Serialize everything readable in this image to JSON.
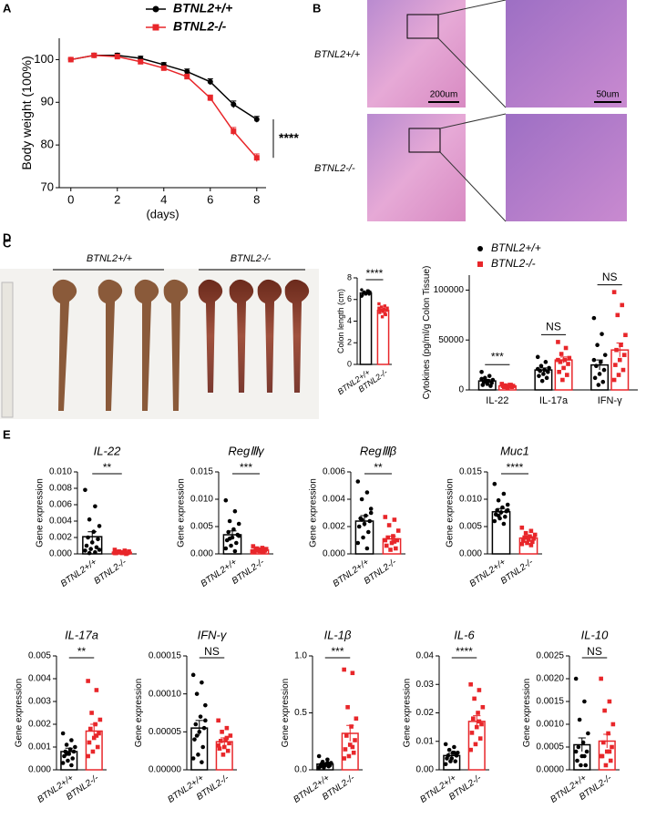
{
  "panel_B": {
    "label": "B",
    "row_labels": [
      "BTNL2+/+",
      "BTNL2-/-"
    ],
    "scale_labels": [
      "200um",
      "50um"
    ]
  },
  "panel_C_photo": {
    "label": "C",
    "group_labels": [
      "BTNL2+/+",
      "BTNL2-/-"
    ]
  },
  "chart_data": [
    {
      "type": "line",
      "panel": "A",
      "x": [
        0,
        1,
        2,
        3,
        4,
        5,
        6,
        7,
        8
      ],
      "xlim": [
        -0.5,
        8.4
      ],
      "xticks": [
        0,
        2,
        4,
        6,
        8
      ],
      "ylim": [
        70,
        105
      ],
      "yticks": [
        70,
        80,
        90,
        100
      ],
      "xlabel": "(days)",
      "ylabel": "Body weight (100%)",
      "annotation": "****",
      "series": [
        {
          "name": "BTNL2+/+",
          "color": "#000000",
          "values": [
            100,
            101,
            101,
            100.3,
            98.8,
            97.2,
            94.8,
            89.5,
            86
          ],
          "errors": [
            0.3,
            0.4,
            0.5,
            0.5,
            0.5,
            0.6,
            0.7,
            0.8,
            0.7
          ]
        },
        {
          "name": "BTNL2-/-",
          "color": "#e8262a",
          "values": [
            100,
            101,
            100.7,
            99.5,
            98,
            96,
            91,
            83.2,
            77
          ],
          "errors": [
            0.3,
            0.4,
            0.5,
            0.5,
            0.5,
            0.6,
            0.7,
            0.9,
            0.9
          ]
        }
      ]
    },
    {
      "type": "dotbar",
      "categories": [
        "BTNL2+/+",
        "BTNL2-/-"
      ],
      "colors": [
        "#000000",
        "#e8262a"
      ],
      "ylabel": "Colon length (cm)",
      "ylim": [
        0,
        8
      ],
      "yticks": [
        0,
        2,
        4,
        6,
        8
      ],
      "sig": "****",
      "values": [
        6.6,
        5.0
      ],
      "errors": [
        0.06,
        0.1
      ],
      "points": [
        [
          6.9,
          6.8,
          6.7,
          6.7,
          6.6,
          6.6,
          6.5,
          6.5,
          6.4,
          6.8,
          6.6,
          6.3
        ],
        [
          5.6,
          5.4,
          5.3,
          5.2,
          5.1,
          5.0,
          5.0,
          4.9,
          4.8,
          4.6,
          4.4,
          5.2,
          4.7
        ]
      ]
    },
    {
      "type": "grouped_bar",
      "panel": "D",
      "categories": [
        "IL-22",
        "IL-17a",
        "IFN-γ"
      ],
      "ylabel": "Cytokines (pg/ml/g Colon Tissue)",
      "ylim": [
        0,
        115000
      ],
      "yticks": [
        0,
        50000,
        100000
      ],
      "sig": [
        "***",
        "NS",
        "NS"
      ],
      "series": [
        {
          "name": "BTNL2+/+",
          "color": "#000000",
          "values": [
            9000,
            20000,
            25000
          ],
          "errors": [
            1300,
            2000,
            5000
          ],
          "points": [
            [
              18000,
              14000,
              12000,
              10000,
              9000,
              8000,
              7000,
              6000,
              5000,
              4000,
              9000,
              11000
            ],
            [
              33000,
              28000,
              24000,
              22000,
              20000,
              19000,
              18000,
              16000,
              14000,
              12000,
              9000,
              21000
            ],
            [
              72000,
              56000,
              45000,
              35000,
              28000,
              24000,
              20000,
              16000,
              12000,
              8000,
              5000,
              30000
            ]
          ]
        },
        {
          "name": "BTNL2-/-",
          "color": "#e8262a",
          "values": [
            4000,
            30000,
            40000
          ],
          "errors": [
            500,
            3000,
            7000
          ],
          "points": [
            [
              6000,
              5000,
              4500,
              4000,
              3500,
              3000,
              3000,
              2500,
              4000,
              5000
            ],
            [
              48000,
              42000,
              36000,
              32000,
              30000,
              28000,
              26000,
              22000,
              18000,
              15000,
              10000,
              30000
            ],
            [
              98000,
              85000,
              75000,
              55000,
              45000,
              40000,
              35000,
              30000,
              25000,
              20000,
              15000,
              10000
            ]
          ]
        }
      ]
    },
    {
      "type": "dotbar",
      "panel": "E",
      "title": "IL-22",
      "categories": [
        "BTNL2+/+",
        "BTNL2-/-"
      ],
      "colors": [
        "#000000",
        "#e8262a"
      ],
      "ylabel": "Gene expression",
      "ylim": [
        0,
        0.01
      ],
      "yticks": [
        {
          "value": 0,
          "label": "0.000"
        },
        {
          "value": 0.002,
          "label": "0.002"
        },
        {
          "value": 0.004,
          "label": "0.004"
        },
        {
          "value": 0.006,
          "label": "0.006"
        },
        {
          "value": 0.008,
          "label": "0.008"
        },
        {
          "value": 0.01,
          "label": "0.010"
        }
      ],
      "sig": "**",
      "values": [
        0.0021,
        0.0002
      ],
      "errors": [
        0.0006,
        7e-05
      ],
      "points": [
        [
          0.0078,
          0.0058,
          0.0042,
          0.0034,
          0.0027,
          0.002,
          0.0018,
          0.0014,
          0.001,
          0.0008,
          0.0006,
          0.0004,
          0.0002,
          0.0001,
          0.0005
        ],
        [
          0.0005,
          0.0004,
          0.0003,
          0.0003,
          0.0002,
          0.0002,
          0.0001,
          0.0001,
          0.0001,
          0,
          0.0002,
          0.0001
        ]
      ]
    },
    {
      "type": "dotbar",
      "title": "RegⅢγ",
      "categories": [
        "BTNL2+/+",
        "BTNL2-/-"
      ],
      "colors": [
        "#000000",
        "#e8262a"
      ],
      "ylabel": "Gene expression",
      "ylim": [
        0,
        0.015
      ],
      "yticks": [
        {
          "value": 0,
          "label": "0.000"
        },
        {
          "value": 0.005,
          "label": "0.005"
        },
        {
          "value": 0.01,
          "label": "0.010"
        },
        {
          "value": 0.015,
          "label": "0.015"
        }
      ],
      "sig": "***",
      "values": [
        0.0035,
        0.0007
      ],
      "errors": [
        0.0007,
        0.0002
      ],
      "points": [
        [
          0.0098,
          0.0078,
          0.006,
          0.0055,
          0.0045,
          0.004,
          0.0035,
          0.003,
          0.0025,
          0.002,
          0.0015,
          0.001,
          0.0005,
          0.0028,
          0.0033
        ],
        [
          0.0014,
          0.0011,
          0.001,
          0.0009,
          0.0008,
          0.0007,
          0.0006,
          0.0005,
          0.0004,
          0.0003,
          0.0006,
          0.0005,
          0.0004
        ]
      ]
    },
    {
      "type": "dotbar",
      "title": "RegⅢβ",
      "categories": [
        "BTNL2+/+",
        "BTNL2-/-"
      ],
      "colors": [
        "#000000",
        "#e8262a"
      ],
      "ylabel": "Gene expression",
      "ylim": [
        0,
        0.006
      ],
      "yticks": [
        {
          "value": 0,
          "label": "0.000"
        },
        {
          "value": 0.002,
          "label": "0.002"
        },
        {
          "value": 0.004,
          "label": "0.004"
        },
        {
          "value": 0.006,
          "label": "0.006"
        }
      ],
      "sig": "**",
      "values": [
        0.0024,
        0.0011
      ],
      "errors": [
        0.0004,
        0.0002
      ],
      "points": [
        [
          0.0053,
          0.0045,
          0.004,
          0.0033,
          0.0028,
          0.0026,
          0.0024,
          0.0022,
          0.002,
          0.0016,
          0.0012,
          0.0008,
          0.0004,
          0.0025,
          0.003
        ],
        [
          0.0027,
          0.0025,
          0.0021,
          0.0017,
          0.0013,
          0.0012,
          0.001,
          0.0008,
          0.0006,
          0.0004,
          0.0003,
          0.001,
          0.0009
        ]
      ]
    },
    {
      "type": "dotbar",
      "title": "Muc1",
      "categories": [
        "BTNL2+/+",
        "BTNL2-/-"
      ],
      "colors": [
        "#000000",
        "#e8262a"
      ],
      "ylabel": "Gene expression",
      "ylim": [
        0,
        0.015
      ],
      "yticks": [
        {
          "value": 0,
          "label": "0.000"
        },
        {
          "value": 0.005,
          "label": "0.005"
        },
        {
          "value": 0.01,
          "label": "0.010"
        },
        {
          "value": 0.015,
          "label": "0.015"
        }
      ],
      "sig": "****",
      "values": [
        0.0077,
        0.0029
      ],
      "errors": [
        0.0006,
        0.0003
      ],
      "points": [
        [
          0.0128,
          0.011,
          0.0098,
          0.009,
          0.0085,
          0.008,
          0.0078,
          0.0076,
          0.0072,
          0.0068,
          0.0065,
          0.006,
          0.0055,
          0.007,
          0.008
        ],
        [
          0.0048,
          0.0042,
          0.0038,
          0.0035,
          0.0032,
          0.003,
          0.0028,
          0.0026,
          0.0024,
          0.0022,
          0.002,
          0.0018,
          0.0016,
          0.003
        ]
      ]
    },
    {
      "type": "dotbar",
      "title": "IL-17a",
      "categories": [
        "BTNL2+/+",
        "BTNL2-/-"
      ],
      "colors": [
        "#000000",
        "#e8262a"
      ],
      "ylabel": "Gene expression",
      "ylim": [
        0,
        0.005
      ],
      "yticks": [
        {
          "value": 0,
          "label": "0.000"
        },
        {
          "value": 0.001,
          "label": "0.001"
        },
        {
          "value": 0.002,
          "label": "0.002"
        },
        {
          "value": 0.003,
          "label": "0.003"
        },
        {
          "value": 0.004,
          "label": "0.004"
        },
        {
          "value": 0.005,
          "label": "0.005"
        }
      ],
      "sig": "**",
      "values": [
        0.0008,
        0.0017
      ],
      "errors": [
        0.00015,
        0.0003
      ],
      "points": [
        [
          0.0016,
          0.0013,
          0.0011,
          0.001,
          0.0009,
          0.0008,
          0.0008,
          0.0007,
          0.0006,
          0.0005,
          0.0004,
          0.0003,
          0.0002,
          0.0007
        ],
        [
          0.0039,
          0.0035,
          0.0025,
          0.0022,
          0.002,
          0.0018,
          0.0016,
          0.0014,
          0.0012,
          0.001,
          0.0008,
          0.0006,
          0.0015
        ]
      ]
    },
    {
      "type": "dotbar",
      "title": "IFN-γ",
      "categories": [
        "BTNL2+/+",
        "BTNL2-/-"
      ],
      "colors": [
        "#000000",
        "#e8262a"
      ],
      "ylabel": "Gene expression",
      "ylim": [
        0,
        0.00015
      ],
      "yticks": [
        {
          "value": 0,
          "label": "0.00000"
        },
        {
          "value": 5e-05,
          "label": "0.00005"
        },
        {
          "value": 0.0001,
          "label": "0.00010"
        },
        {
          "value": 0.00015,
          "label": "0.00015"
        }
      ],
      "sig": "NS",
      "values": [
        5.5e-05,
        3.7e-05
      ],
      "errors": [
        1e-05,
        5e-06
      ],
      "points": [
        [
          0.000125,
          0.000115,
          0.0001,
          8.5e-05,
          7e-05,
          6e-05,
          5.5e-05,
          5e-05,
          4e-05,
          3e-05,
          2e-05,
          1.5e-05,
          1e-05,
          4.5e-05,
          6.5e-05
        ],
        [
          6.5e-05,
          5.5e-05,
          5e-05,
          4.5e-05,
          4e-05,
          3.8e-05,
          3.5e-05,
          3e-05,
          2.8e-05,
          2.5e-05,
          2e-05,
          3.2e-05,
          4.2e-05
        ]
      ]
    },
    {
      "type": "dotbar",
      "title": "IL-1β",
      "categories": [
        "BTNL2+/+",
        "BTNL2-/-"
      ],
      "colors": [
        "#000000",
        "#e8262a"
      ],
      "ylabel": "Gene expression",
      "ylim": [
        0,
        1
      ],
      "yticks": [
        {
          "value": 0,
          "label": "0.0"
        },
        {
          "value": 0.5,
          "label": "0.5"
        },
        {
          "value": 1,
          "label": "1.0"
        }
      ],
      "sig": "***",
      "values": [
        0.05,
        0.32
      ],
      "errors": [
        0.01,
        0.07
      ],
      "points": [
        [
          0.12,
          0.09,
          0.07,
          0.06,
          0.05,
          0.05,
          0.04,
          0.04,
          0.03,
          0.03,
          0.02,
          0.02,
          0.06,
          0.04
        ],
        [
          0.88,
          0.85,
          0.55,
          0.45,
          0.38,
          0.3,
          0.26,
          0.22,
          0.18,
          0.15,
          0.12,
          0.1,
          0.2
        ]
      ]
    },
    {
      "type": "dotbar",
      "title": "IL-6",
      "categories": [
        "BTNL2+/+",
        "BTNL2-/-"
      ],
      "colors": [
        "#000000",
        "#e8262a"
      ],
      "ylabel": "Gene expression",
      "ylim": [
        0,
        0.04
      ],
      "yticks": [
        {
          "value": 0,
          "label": "0.00"
        },
        {
          "value": 0.01,
          "label": "0.01"
        },
        {
          "value": 0.02,
          "label": "0.02"
        },
        {
          "value": 0.03,
          "label": "0.03"
        },
        {
          "value": 0.04,
          "label": "0.04"
        }
      ],
      "sig": "****",
      "values": [
        0.005,
        0.017
      ],
      "errors": [
        0.0008,
        0.002
      ],
      "points": [
        [
          0.009,
          0.008,
          0.007,
          0.006,
          0.006,
          0.005,
          0.005,
          0.004,
          0.004,
          0.003,
          0.003,
          0.002,
          0.006
        ],
        [
          0.03,
          0.028,
          0.025,
          0.022,
          0.02,
          0.018,
          0.016,
          0.015,
          0.013,
          0.011,
          0.009,
          0.007,
          0.017
        ]
      ]
    },
    {
      "type": "dotbar",
      "title": "IL-10",
      "categories": [
        "BTNL2+/+",
        "BTNL2-/-"
      ],
      "colors": [
        "#000000",
        "#e8262a"
      ],
      "ylabel": "Gene expression",
      "ylim": [
        0,
        0.0025
      ],
      "yticks": [
        {
          "value": 0,
          "label": "0.0000"
        },
        {
          "value": 0.0005,
          "label": "0.0005"
        },
        {
          "value": 0.001,
          "label": "0.0010"
        },
        {
          "value": 0.0015,
          "label": "0.0015"
        },
        {
          "value": 0.002,
          "label": "0.0020"
        },
        {
          "value": 0.0025,
          "label": "0.0025"
        }
      ],
      "sig": "NS",
      "values": [
        0.00055,
        0.00063
      ],
      "errors": [
        0.00015,
        0.00015
      ],
      "points": [
        [
          0.002,
          0.0015,
          0.0011,
          0.0008,
          0.0006,
          0.0005,
          0.0004,
          0.0003,
          0.0002,
          0.0001,
          0.0001,
          0.0004,
          0.0003
        ],
        [
          0.002,
          0.0015,
          0.0013,
          0.001,
          0.0008,
          0.0006,
          0.0005,
          0.0004,
          0.0003,
          0.0002,
          0.0001,
          0.0003,
          0.0004
        ]
      ]
    }
  ]
}
